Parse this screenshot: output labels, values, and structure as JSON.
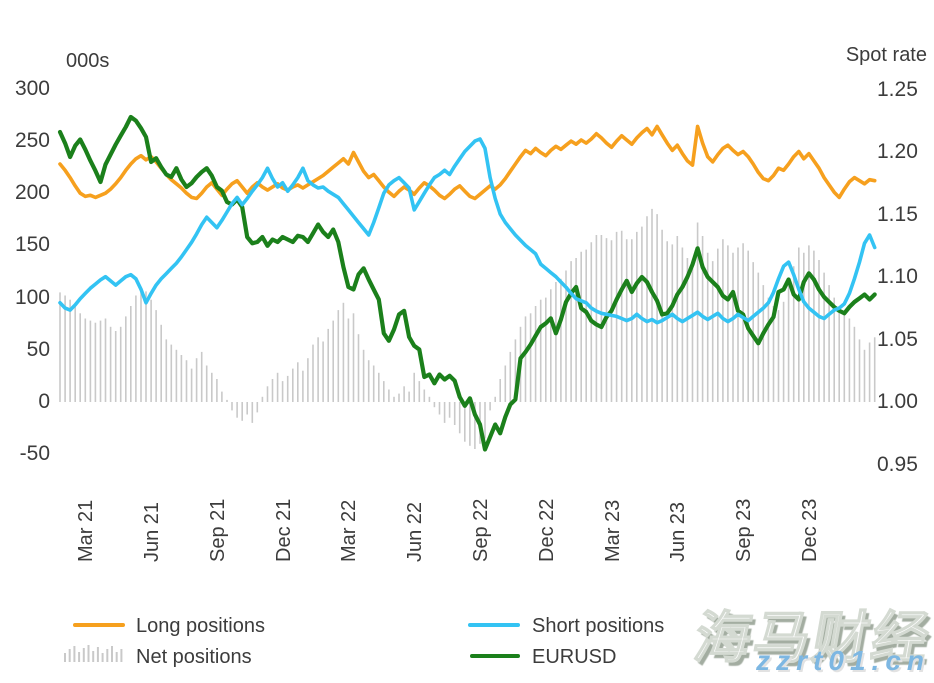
{
  "watermark": {
    "title": "海马财经",
    "url": "zzrt01.cn"
  },
  "legend": {
    "items": [
      {
        "label": "Long positions",
        "color": "#F6A01E",
        "swatch": "line"
      },
      {
        "label": "Net positions",
        "color": "#C9C9C9",
        "swatch": "bars"
      },
      {
        "label": "Short positions",
        "color": "#33C3F3",
        "swatch": "line"
      },
      {
        "label": "EURUSD",
        "color": "#1B801B",
        "swatch": "line"
      }
    ]
  },
  "chart_data": {
    "type": "combo",
    "frequency": "weekly",
    "x_start": "2021-01-26",
    "x_end": "2024-02-27",
    "x_labels": [
      "Mar 21",
      "Jun 21",
      "Sep 21",
      "Dec 21",
      "Mar 22",
      "Jun 22",
      "Sep 22",
      "Dec 22",
      "Mar 23",
      "Jun 23",
      "Sep 23",
      "Dec 23"
    ],
    "left_axis": {
      "title": "000s",
      "range": [
        -50,
        300
      ],
      "ticks": [
        300,
        250,
        200,
        150,
        100,
        50,
        0,
        -50
      ]
    },
    "right_axis": {
      "title": "Spot rate",
      "range": [
        0.95,
        1.25
      ],
      "ticks": [
        "1.25",
        "1.20",
        "1.15",
        "1.10",
        "1.05",
        "1.00",
        "0.95"
      ]
    },
    "grid": false,
    "legend_position": "bottom",
    "series": [
      {
        "name": "Long positions",
        "type": "line",
        "axis": "left",
        "color": "#F6A01E",
        "values": [
          228,
          222,
          215,
          207,
          200,
          197,
          198,
          196,
          198,
          200,
          204,
          209,
          215,
          222,
          228,
          233,
          236,
          232,
          235,
          230,
          224,
          218,
          213,
          209,
          205,
          200,
          196,
          195,
          200,
          206,
          210,
          204,
          198,
          204,
          209,
          212,
          206,
          200,
          206,
          210,
          206,
          203,
          206,
          209,
          205,
          203,
          206,
          208,
          205,
          208,
          211,
          214,
          217,
          221,
          225,
          229,
          233,
          228,
          239,
          230,
          221,
          215,
          218,
          212,
          206,
          201,
          197,
          202,
          206,
          203,
          199,
          205,
          210,
          207,
          203,
          198,
          195,
          199,
          204,
          207,
          202,
          197,
          195,
          199,
          203,
          207,
          204,
          208,
          214,
          221,
          228,
          235,
          241,
          238,
          243,
          239,
          236,
          241,
          245,
          242,
          246,
          250,
          247,
          251,
          248,
          252,
          257,
          253,
          248,
          244,
          250,
          255,
          251,
          247,
          253,
          258,
          262,
          256,
          264,
          256,
          248,
          241,
          246,
          238,
          231,
          227,
          264,
          248,
          235,
          230,
          237,
          243,
          246,
          241,
          237,
          240,
          235,
          228,
          220,
          214,
          212,
          217,
          224,
          222,
          228,
          235,
          240,
          233,
          238,
          231,
          224,
          215,
          208,
          201,
          196,
          204,
          211,
          215,
          212,
          209,
          213,
          212
        ]
      },
      {
        "name": "Short positions",
        "type": "line",
        "axis": "left",
        "color": "#33C3F3",
        "values": [
          95,
          90,
          88,
          93,
          99,
          104,
          109,
          113,
          117,
          120,
          116,
          112,
          116,
          120,
          122,
          118,
          108,
          95,
          104,
          112,
          118,
          123,
          128,
          133,
          139,
          146,
          153,
          161,
          170,
          177,
          172,
          167,
          174,
          182,
          190,
          196,
          189,
          195,
          202,
          208,
          215,
          224,
          214,
          206,
          210,
          202,
          208,
          215,
          224,
          212,
          208,
          205,
          206,
          202,
          199,
          196,
          190,
          184,
          178,
          172,
          166,
          160,
          172,
          186,
          200,
          208,
          212,
          215,
          210,
          205,
          184,
          192,
          200,
          208,
          215,
          218,
          222,
          218,
          226,
          233,
          240,
          245,
          250,
          252,
          243,
          215,
          195,
          180,
          172,
          166,
          160,
          155,
          150,
          146,
          142,
          132,
          128,
          124,
          120,
          115,
          110,
          104,
          99,
          97,
          95,
          90,
          87,
          85,
          84,
          83,
          82,
          80,
          78,
          80,
          84,
          80,
          77,
          79,
          76,
          78,
          81,
          84,
          80,
          77,
          80,
          83,
          86,
          82,
          79,
          82,
          85,
          80,
          77,
          80,
          84,
          81,
          78,
          82,
          86,
          90,
          95,
          105,
          118,
          130,
          134,
          122,
          108,
          96,
          90,
          86,
          82,
          80,
          84,
          88,
          90,
          94,
          104,
          118,
          134,
          152,
          160,
          148
        ]
      },
      {
        "name": "Net positions",
        "type": "bar",
        "axis": "left",
        "color": "#C9C9C9",
        "values": [
          105,
          102,
          98,
          92,
          85,
          80,
          78,
          76,
          78,
          80,
          72,
          68,
          72,
          82,
          92,
          102,
          110,
          106,
          98,
          88,
          74,
          60,
          55,
          50,
          45,
          40,
          32,
          42,
          48,
          35,
          28,
          22,
          10,
          2,
          -8,
          -15,
          -18,
          -12,
          -20,
          -10,
          5,
          15,
          22,
          28,
          20,
          25,
          32,
          38,
          30,
          42,
          55,
          62,
          58,
          70,
          78,
          88,
          95,
          80,
          85,
          65,
          50,
          40,
          35,
          28,
          20,
          12,
          5,
          8,
          15,
          10,
          28,
          20,
          12,
          5,
          -5,
          -12,
          -20,
          -15,
          -22,
          -30,
          -38,
          -42,
          -45,
          -40,
          -35,
          -8,
          5,
          22,
          35,
          48,
          60,
          72,
          82,
          85,
          92,
          98,
          100,
          108,
          115,
          118,
          126,
          135,
          138,
          144,
          146,
          153,
          160,
          160,
          157,
          155,
          163,
          164,
          156,
          156,
          163,
          168,
          178,
          185,
          180,
          165,
          154,
          151,
          159,
          148,
          138,
          131,
          172,
          159,
          143,
          135,
          147,
          156,
          150,
          143,
          148,
          152,
          145,
          134,
          124,
          112,
          100,
          92,
          88,
          96,
          112,
          130,
          148,
          143,
          150,
          145,
          136,
          124,
          112,
          100,
          88,
          85,
          80,
          72,
          60,
          50,
          57,
          62
        ]
      },
      {
        "name": "EURUSD",
        "type": "line",
        "axis": "right",
        "color": "#1B801B",
        "values": [
          1.216,
          1.207,
          1.196,
          1.205,
          1.21,
          1.202,
          1.193,
          1.185,
          1.176,
          1.19,
          1.198,
          1.206,
          1.213,
          1.22,
          1.228,
          1.225,
          1.219,
          1.212,
          1.192,
          1.195,
          1.188,
          1.182,
          1.18,
          1.187,
          1.178,
          1.172,
          1.175,
          1.18,
          1.184,
          1.187,
          1.181,
          1.172,
          1.169,
          1.16,
          1.158,
          1.162,
          1.156,
          1.132,
          1.127,
          1.128,
          1.132,
          1.125,
          1.13,
          1.128,
          1.132,
          1.13,
          1.128,
          1.133,
          1.132,
          1.128,
          1.135,
          1.142,
          1.136,
          1.132,
          1.138,
          1.128,
          1.108,
          1.092,
          1.09,
          1.102,
          1.107,
          1.098,
          1.09,
          1.082,
          1.055,
          1.049,
          1.058,
          1.07,
          1.073,
          1.052,
          1.045,
          1.042,
          1.02,
          1.022,
          1.015,
          1.022,
          1.018,
          1.021,
          1.017,
          1.004,
          0.997,
          1.003,
          0.99,
          0.982,
          0.962,
          0.972,
          0.982,
          0.975,
          0.988,
          0.998,
          1.002,
          1.035,
          1.04,
          1.046,
          1.053,
          1.06,
          1.063,
          1.067,
          1.055,
          1.066,
          1.08,
          1.087,
          1.092,
          1.075,
          1.072,
          1.065,
          1.062,
          1.06,
          1.068,
          1.073,
          1.082,
          1.09,
          1.097,
          1.088,
          1.095,
          1.1,
          1.096,
          1.088,
          1.081,
          1.07,
          1.071,
          1.077,
          1.086,
          1.092,
          1.1,
          1.11,
          1.123,
          1.108,
          1.1,
          1.096,
          1.092,
          1.085,
          1.082,
          1.088,
          1.073,
          1.07,
          1.059,
          1.053,
          1.047,
          1.055,
          1.062,
          1.068,
          1.088,
          1.09,
          1.098,
          1.086,
          1.082,
          1.096,
          1.103,
          1.098,
          1.09,
          1.084,
          1.08,
          1.076,
          1.073,
          1.071,
          1.076,
          1.08,
          1.083,
          1.086,
          1.082,
          1.086
        ]
      }
    ]
  }
}
